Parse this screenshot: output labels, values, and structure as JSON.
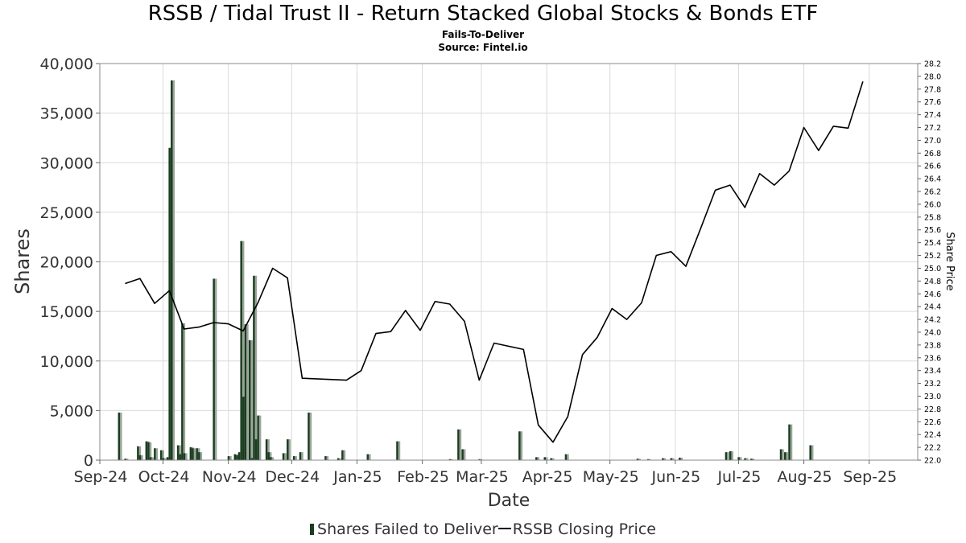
{
  "chart_data": {
    "type": "bar",
    "title": "RSSB / Tidal Trust II - Return Stacked Global Stocks & Bonds ETF",
    "subtitle": "Fails-To-Deliver",
    "source": "Source: Fintel.io",
    "xlabel": "Date",
    "ylabel": "Shares",
    "y2label": "Share Price",
    "ylim": [
      0,
      40000
    ],
    "y2lim": [
      22.0,
      28.2
    ],
    "y_ticks": [
      "0",
      "5,000",
      "10,000",
      "15,000",
      "20,000",
      "25,000",
      "30,000",
      "35,000",
      "40,000"
    ],
    "y2_ticks": [
      "22.0",
      "22.2",
      "22.4",
      "22.6",
      "22.8",
      "23.0",
      "23.2",
      "23.4",
      "23.6",
      "23.8",
      "24.0",
      "24.2",
      "24.4",
      "24.6",
      "24.8",
      "25.0",
      "25.2",
      "25.4",
      "25.6",
      "25.8",
      "26.0",
      "26.2",
      "26.4",
      "26.6",
      "26.8",
      "27.0",
      "27.2",
      "27.4",
      "27.6",
      "27.8",
      "28.0",
      "28.2"
    ],
    "x_ticks": [
      "Sep-24",
      "Oct-24",
      "Nov-24",
      "Dec-24",
      "Jan-25",
      "Feb-25",
      "Mar-25",
      "Apr-25",
      "May-25",
      "Jun-25",
      "Jul-25",
      "Aug-25",
      "Sep-25"
    ],
    "x_range": [
      "2024-09-01",
      "2025-09-24"
    ],
    "grid": true,
    "legend_position": "bottom",
    "colors": {
      "bar": "#1b3d20",
      "bar_shadow": "#9aa59a",
      "line": "#000000",
      "grid": "#d9d9d9"
    },
    "series": [
      {
        "name": "Shares Failed to Deliver",
        "type": "bar",
        "points": [
          [
            "2024-09-10",
            4800
          ],
          [
            "2024-09-13",
            150
          ],
          [
            "2024-09-19",
            1400
          ],
          [
            "2024-09-20",
            500
          ],
          [
            "2024-09-23",
            1900
          ],
          [
            "2024-09-24",
            1800
          ],
          [
            "2024-09-25",
            300
          ],
          [
            "2024-09-27",
            1200
          ],
          [
            "2024-09-30",
            1000
          ],
          [
            "2024-10-01",
            200
          ],
          [
            "2024-10-03",
            300
          ],
          [
            "2024-10-04",
            31500
          ],
          [
            "2024-10-05",
            38300
          ],
          [
            "2024-10-08",
            1500
          ],
          [
            "2024-10-09",
            600
          ],
          [
            "2024-10-10",
            13800
          ],
          [
            "2024-10-11",
            700
          ],
          [
            "2024-10-14",
            1300
          ],
          [
            "2024-10-15",
            1200
          ],
          [
            "2024-10-17",
            1200
          ],
          [
            "2024-10-18",
            800
          ],
          [
            "2024-10-25",
            18300
          ],
          [
            "2024-11-01",
            400
          ],
          [
            "2024-11-04",
            600
          ],
          [
            "2024-11-05",
            500
          ],
          [
            "2024-11-06",
            800
          ],
          [
            "2024-11-07",
            22100
          ],
          [
            "2024-11-08",
            6400
          ],
          [
            "2024-11-09",
            13700
          ],
          [
            "2024-11-11",
            12100
          ],
          [
            "2024-11-12",
            200
          ],
          [
            "2024-11-13",
            18600
          ],
          [
            "2024-11-14",
            2100
          ],
          [
            "2024-11-15",
            4500
          ],
          [
            "2024-11-19",
            2100
          ],
          [
            "2024-11-20",
            800
          ],
          [
            "2024-11-21",
            300
          ],
          [
            "2024-11-27",
            700
          ],
          [
            "2024-11-29",
            2100
          ],
          [
            "2024-12-02",
            400
          ],
          [
            "2024-12-05",
            800
          ],
          [
            "2024-12-09",
            4800
          ],
          [
            "2024-12-17",
            400
          ],
          [
            "2024-12-23",
            200
          ],
          [
            "2024-12-25",
            1000
          ],
          [
            "2025-01-06",
            600
          ],
          [
            "2025-01-20",
            1900
          ],
          [
            "2025-02-14",
            100
          ],
          [
            "2025-02-18",
            3100
          ],
          [
            "2025-02-20",
            1100
          ],
          [
            "2025-02-28",
            100
          ],
          [
            "2025-03-19",
            2900
          ],
          [
            "2025-03-27",
            300
          ],
          [
            "2025-03-31",
            300
          ],
          [
            "2025-04-03",
            200
          ],
          [
            "2025-04-10",
            600
          ],
          [
            "2025-05-14",
            150
          ],
          [
            "2025-05-19",
            100
          ],
          [
            "2025-05-26",
            200
          ],
          [
            "2025-05-30",
            200
          ],
          [
            "2025-06-03",
            250
          ],
          [
            "2025-06-25",
            800
          ],
          [
            "2025-06-27",
            900
          ],
          [
            "2025-07-01",
            300
          ],
          [
            "2025-07-04",
            200
          ],
          [
            "2025-07-07",
            150
          ],
          [
            "2025-07-21",
            1100
          ],
          [
            "2025-07-23",
            800
          ],
          [
            "2025-07-25",
            3600
          ],
          [
            "2025-08-04",
            1500
          ]
        ]
      },
      {
        "name": "RSSB Closing Price",
        "type": "line",
        "points": [
          [
            "2024-09-13",
            24.76
          ],
          [
            "2024-09-20",
            24.84
          ],
          [
            "2024-09-27",
            24.45
          ],
          [
            "2024-10-04",
            24.65
          ],
          [
            "2024-10-11",
            24.05
          ],
          [
            "2024-10-18",
            24.08
          ],
          [
            "2024-10-25",
            24.15
          ],
          [
            "2024-11-01",
            24.13
          ],
          [
            "2024-11-08",
            24.02
          ],
          [
            "2024-11-15",
            24.46
          ],
          [
            "2024-11-22",
            25.0
          ],
          [
            "2024-11-29",
            24.85
          ],
          [
            "2024-12-06",
            23.28
          ],
          [
            "2024-12-27",
            23.25
          ],
          [
            "2025-01-03",
            23.4
          ],
          [
            "2025-01-10",
            23.98
          ],
          [
            "2025-01-17",
            24.01
          ],
          [
            "2025-01-24",
            24.34
          ],
          [
            "2025-01-31",
            24.03
          ],
          [
            "2025-02-07",
            24.48
          ],
          [
            "2025-02-14",
            24.44
          ],
          [
            "2025-02-21",
            24.17
          ],
          [
            "2025-02-28",
            23.25
          ],
          [
            "2025-03-07",
            23.83
          ],
          [
            "2025-03-21",
            23.73
          ],
          [
            "2025-03-28",
            22.55
          ],
          [
            "2025-04-04",
            22.28
          ],
          [
            "2025-04-11",
            22.68
          ],
          [
            "2025-04-18",
            23.65
          ],
          [
            "2025-04-25",
            23.92
          ],
          [
            "2025-05-02",
            24.37
          ],
          [
            "2025-05-09",
            24.2
          ],
          [
            "2025-05-16",
            24.46
          ],
          [
            "2025-05-23",
            25.2
          ],
          [
            "2025-05-30",
            25.26
          ],
          [
            "2025-06-06",
            25.03
          ],
          [
            "2025-06-13",
            25.62
          ],
          [
            "2025-06-20",
            26.22
          ],
          [
            "2025-06-27",
            26.3
          ],
          [
            "2025-07-04",
            25.95
          ],
          [
            "2025-07-11",
            26.48
          ],
          [
            "2025-07-18",
            26.3
          ],
          [
            "2025-07-25",
            26.52
          ],
          [
            "2025-08-01",
            27.2
          ],
          [
            "2025-08-08",
            26.84
          ],
          [
            "2025-08-15",
            27.22
          ],
          [
            "2025-08-22",
            27.19
          ],
          [
            "2025-08-29",
            27.92
          ]
        ]
      }
    ]
  }
}
